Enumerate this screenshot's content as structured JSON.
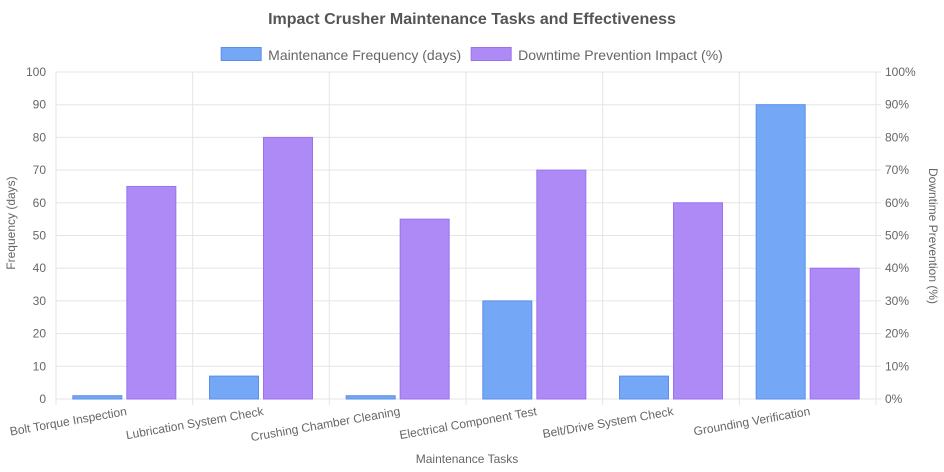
{
  "chart_data": {
    "type": "bar",
    "title": "Impact Crusher Maintenance Tasks and Effectiveness",
    "xlabel": "Maintenance Tasks",
    "ylabel": "Frequency (days)",
    "y2label": "Downtime Prevention (%)",
    "categories": [
      "Bolt Torque Inspection",
      "Lubrication System Check",
      "Crushing Chamber Cleaning",
      "Electrical Component Test",
      "Belt/Drive System Check",
      "Grounding Verification"
    ],
    "series": [
      {
        "name": "Maintenance Frequency (days)",
        "axis": "left",
        "values": [
          1,
          7,
          1,
          30,
          7,
          90
        ],
        "color": "#74a7f5",
        "border": "#5b8fe8"
      },
      {
        "name": "Downtime Prevention Impact (%)",
        "axis": "right",
        "values": [
          65,
          80,
          55,
          70,
          60,
          40
        ],
        "color": "#ad8af5",
        "border": "#9a72ee"
      }
    ],
    "ylim": [
      0,
      100
    ],
    "y2lim": [
      0,
      100
    ],
    "yticks": [
      "0",
      "10",
      "20",
      "30",
      "40",
      "50",
      "60",
      "70",
      "80",
      "90",
      "100"
    ],
    "y2ticks": [
      "0%",
      "10%",
      "20%",
      "30%",
      "40%",
      "50%",
      "60%",
      "70%",
      "80%",
      "90%",
      "100%"
    ],
    "grid": true,
    "legend": "top"
  }
}
